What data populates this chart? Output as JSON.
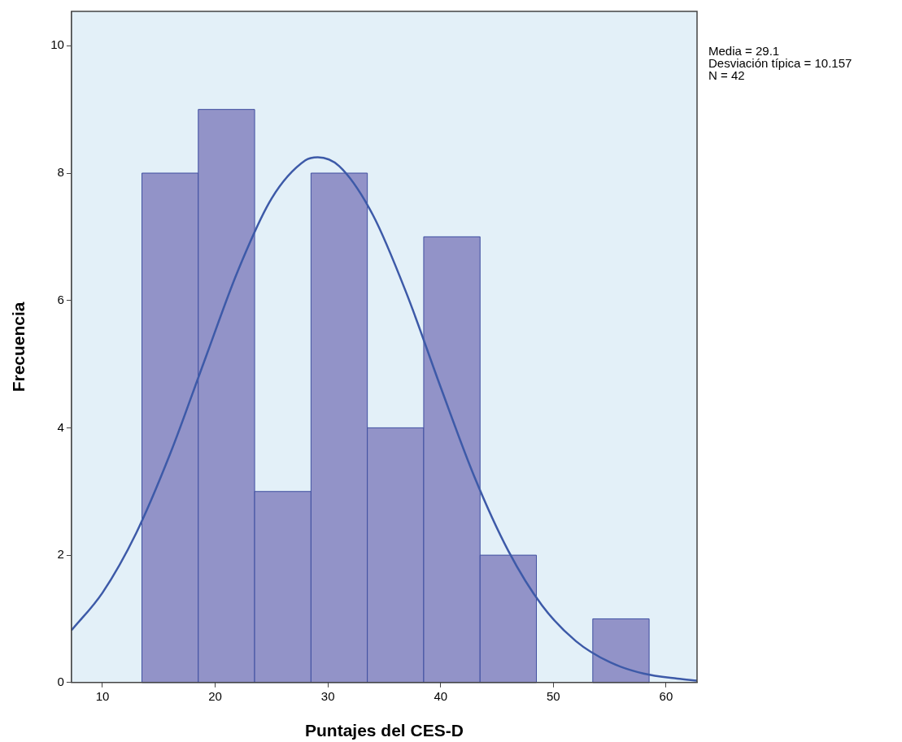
{
  "chart_data": {
    "type": "histogram",
    "xlabel": "Puntajes del CES-D",
    "ylabel": "Frecuencia",
    "bins": [
      13.5,
      18.5,
      23.5,
      28.5,
      33.5,
      38.5,
      43.5,
      48.5,
      53.5,
      58.5
    ],
    "values": [
      8,
      9,
      3,
      8,
      4,
      7,
      2,
      0,
      1
    ],
    "color": "#9293c8",
    "xlim": [
      7.25,
      62.75
    ],
    "xticks": [
      10,
      20,
      30,
      40,
      50,
      60
    ],
    "ylim": [
      0,
      10.54
    ],
    "yticks": [
      0,
      2,
      4,
      6,
      8,
      10
    ],
    "grid": false,
    "legend": false,
    "series": [
      {
        "type": "line",
        "color": "#3d5aa8",
        "marker": "none",
        "x": [
          7.25,
          10,
          13,
          16,
          19,
          22,
          25,
          28,
          29.1,
          31,
          34,
          37,
          40,
          43,
          46,
          49,
          52,
          55,
          58,
          61,
          62.75
        ],
        "values": [
          0.82,
          1.41,
          2.35,
          3.59,
          5.03,
          6.46,
          7.6,
          8.2,
          8.25,
          8.11,
          7.34,
          6.1,
          4.64,
          3.23,
          2.07,
          1.21,
          0.65,
          0.32,
          0.14,
          0.06,
          0.03
        ]
      }
    ],
    "annotations": [
      "Media = 29.1",
      "Desviación típica = 10.157",
      "N = 42"
    ]
  }
}
